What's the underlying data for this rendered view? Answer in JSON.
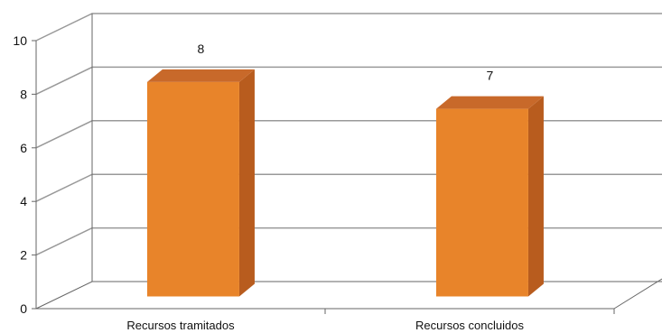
{
  "chart_data": {
    "type": "bar",
    "categories": [
      "Recursos tramitados",
      "Recursos concluidos"
    ],
    "series": [
      {
        "values": [
          8,
          7
        ]
      }
    ],
    "ylim": [
      0,
      10
    ],
    "yticks": [
      "0",
      "2",
      "4",
      "6",
      "8",
      "10"
    ],
    "data_labels": [
      "8",
      "7"
    ],
    "grid": true,
    "legend": "none",
    "colors": {
      "bar_front": "#e8842a",
      "bar_side": "#b85c1e",
      "bar_top": "#c8692a",
      "gridline": "#999999",
      "axis": "#666666"
    }
  }
}
